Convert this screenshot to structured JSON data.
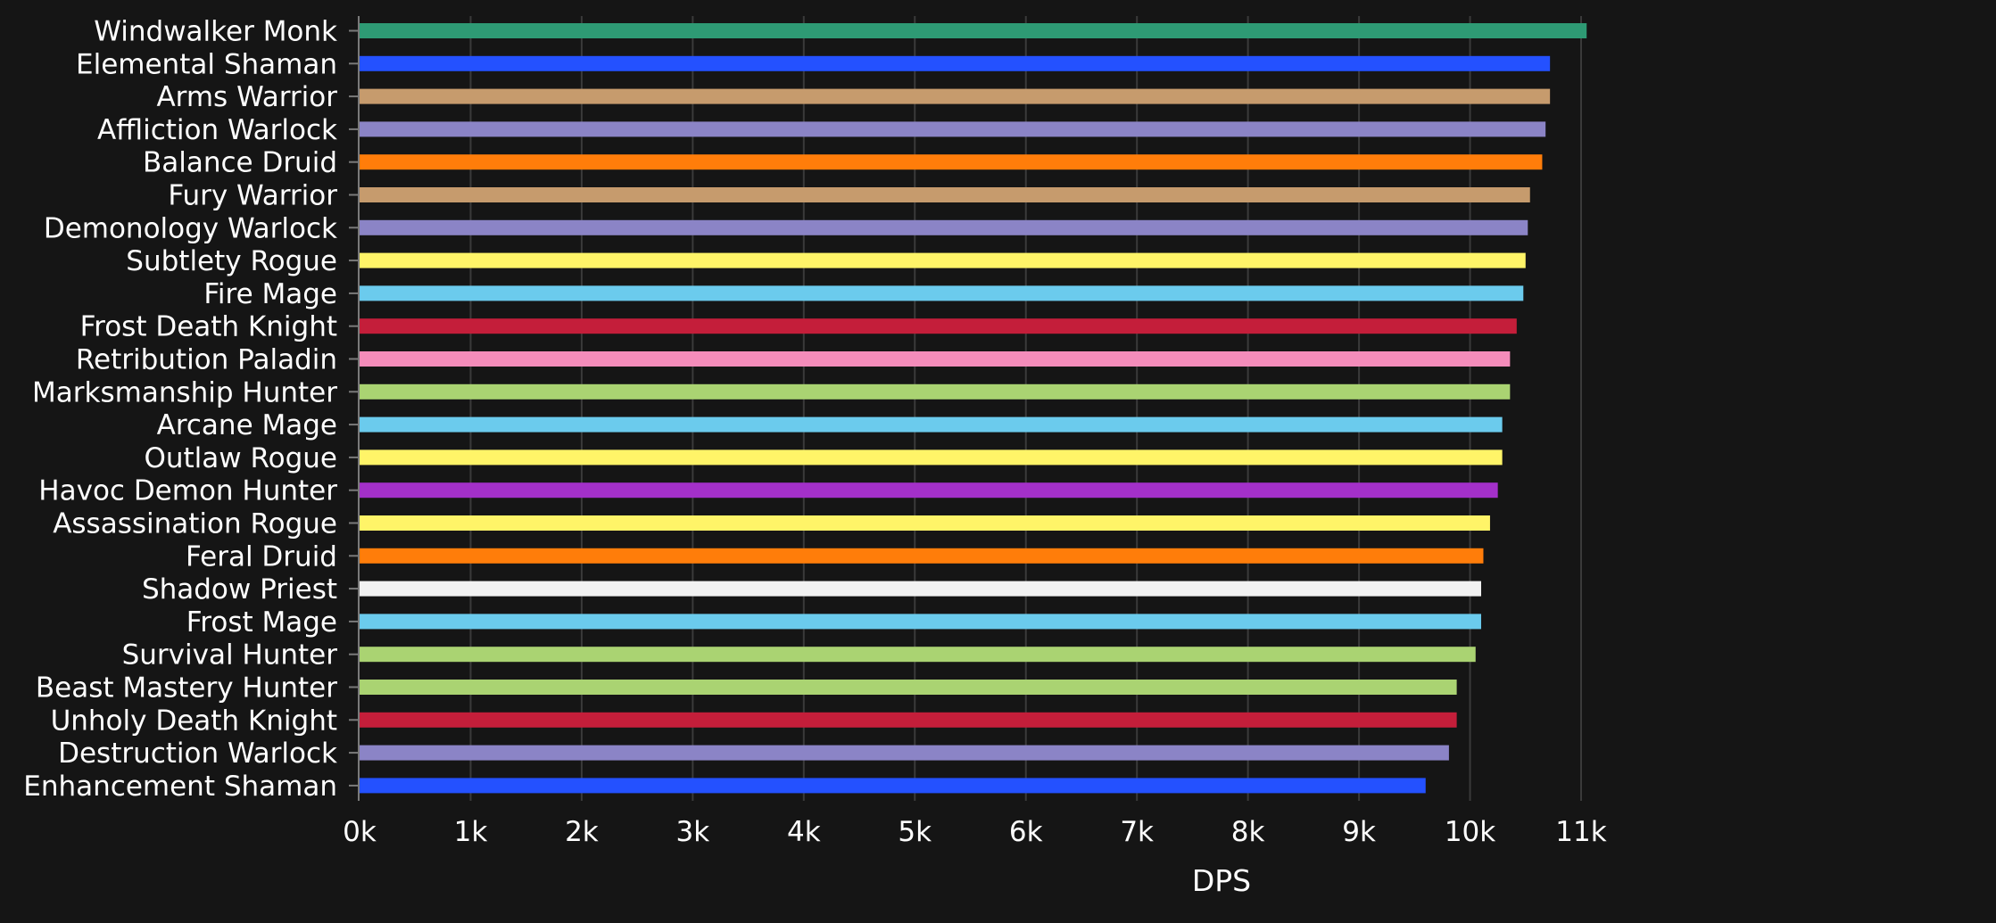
{
  "chart_data": {
    "type": "bar",
    "orientation": "horizontal",
    "title": "",
    "xlabel": "DPS",
    "ylabel": "",
    "xlim": [
      0,
      11200
    ],
    "x_ticks": [
      0,
      1000,
      2000,
      3000,
      4000,
      5000,
      6000,
      7000,
      8000,
      9000,
      10000,
      11000
    ],
    "x_tick_labels": [
      "0k",
      "1k",
      "2k",
      "3k",
      "4k",
      "5k",
      "6k",
      "7k",
      "8k",
      "9k",
      "10k",
      "11k"
    ],
    "grid": "vertical",
    "legend": "none",
    "categories": [
      "Windwalker Monk",
      "Elemental Shaman",
      "Arms Warrior",
      "Affliction Warlock",
      "Balance Druid",
      "Fury Warrior",
      "Demonology Warlock",
      "Subtlety Rogue",
      "Fire Mage",
      "Frost Death Knight",
      "Retribution Paladin",
      "Marksmanship Hunter",
      "Arcane Mage",
      "Outlaw Rogue",
      "Havoc Demon Hunter",
      "Assassination Rogue",
      "Feral Druid",
      "Shadow Priest",
      "Frost Mage",
      "Survival Hunter",
      "Beast Mastery Hunter",
      "Unholy Death Knight",
      "Destruction Warlock",
      "Enhancement Shaman"
    ],
    "values": [
      11050,
      10720,
      10720,
      10680,
      10650,
      10540,
      10520,
      10500,
      10480,
      10420,
      10360,
      10360,
      10290,
      10290,
      10250,
      10180,
      10120,
      10100,
      10100,
      10050,
      9880,
      9880,
      9810,
      9600
    ],
    "colors": [
      "#2e9a74",
      "#2451ff",
      "#c69b6d",
      "#8b84c6",
      "#ff7d0a",
      "#c69b6d",
      "#8b84c6",
      "#fff468",
      "#6bcbed",
      "#c41e3a",
      "#f48cba",
      "#aad372",
      "#6bcbed",
      "#fff468",
      "#a330c9",
      "#fff468",
      "#ff7d0a",
      "#f2f2f2",
      "#6bcbed",
      "#aad372",
      "#aad372",
      "#c41e3a",
      "#8b84c6",
      "#2451ff"
    ],
    "background_color": "#151515",
    "grid_color": "#3a3a3a",
    "axis_color": "#7a7a7a",
    "text_color": "#ffffff"
  }
}
